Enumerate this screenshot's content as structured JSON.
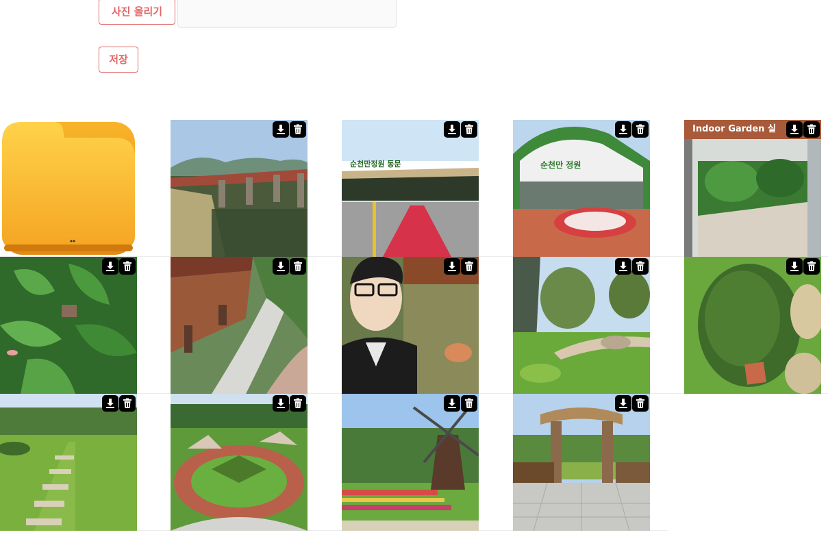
{
  "toolbar": {
    "upload_label": "사진 올리기",
    "save_label": "저장"
  },
  "gallery": {
    "folder_icon": "folder-icon",
    "tile_action_icons": [
      "download-icon",
      "trash-icon"
    ],
    "photos": [
      {
        "icon": "photo-bridge",
        "sign_text": ""
      },
      {
        "icon": "photo-east-gate",
        "sign_text": "순천만정원 동문"
      },
      {
        "icon": "photo-garden-building",
        "sign_text": "순천만 정원"
      },
      {
        "icon": "photo-indoor-garden",
        "sign_text": "Indoor Garden 실"
      },
      {
        "icon": "photo-tropical-leaves",
        "sign_text": ""
      },
      {
        "icon": "photo-stepping-stones-pond",
        "sign_text": ""
      },
      {
        "icon": "photo-selfie",
        "sign_text": ""
      },
      {
        "icon": "photo-rock-garden",
        "sign_text": ""
      },
      {
        "icon": "photo-shrub",
        "sign_text": ""
      },
      {
        "icon": "photo-lawn-path",
        "sign_text": ""
      },
      {
        "icon": "photo-circular-garden",
        "sign_text": ""
      },
      {
        "icon": "photo-windmill",
        "sign_text": ""
      },
      {
        "icon": "photo-wooden-gate",
        "sign_text": ""
      }
    ]
  },
  "colors": {
    "accent": "#e06666",
    "folder": "#f7b52c"
  }
}
